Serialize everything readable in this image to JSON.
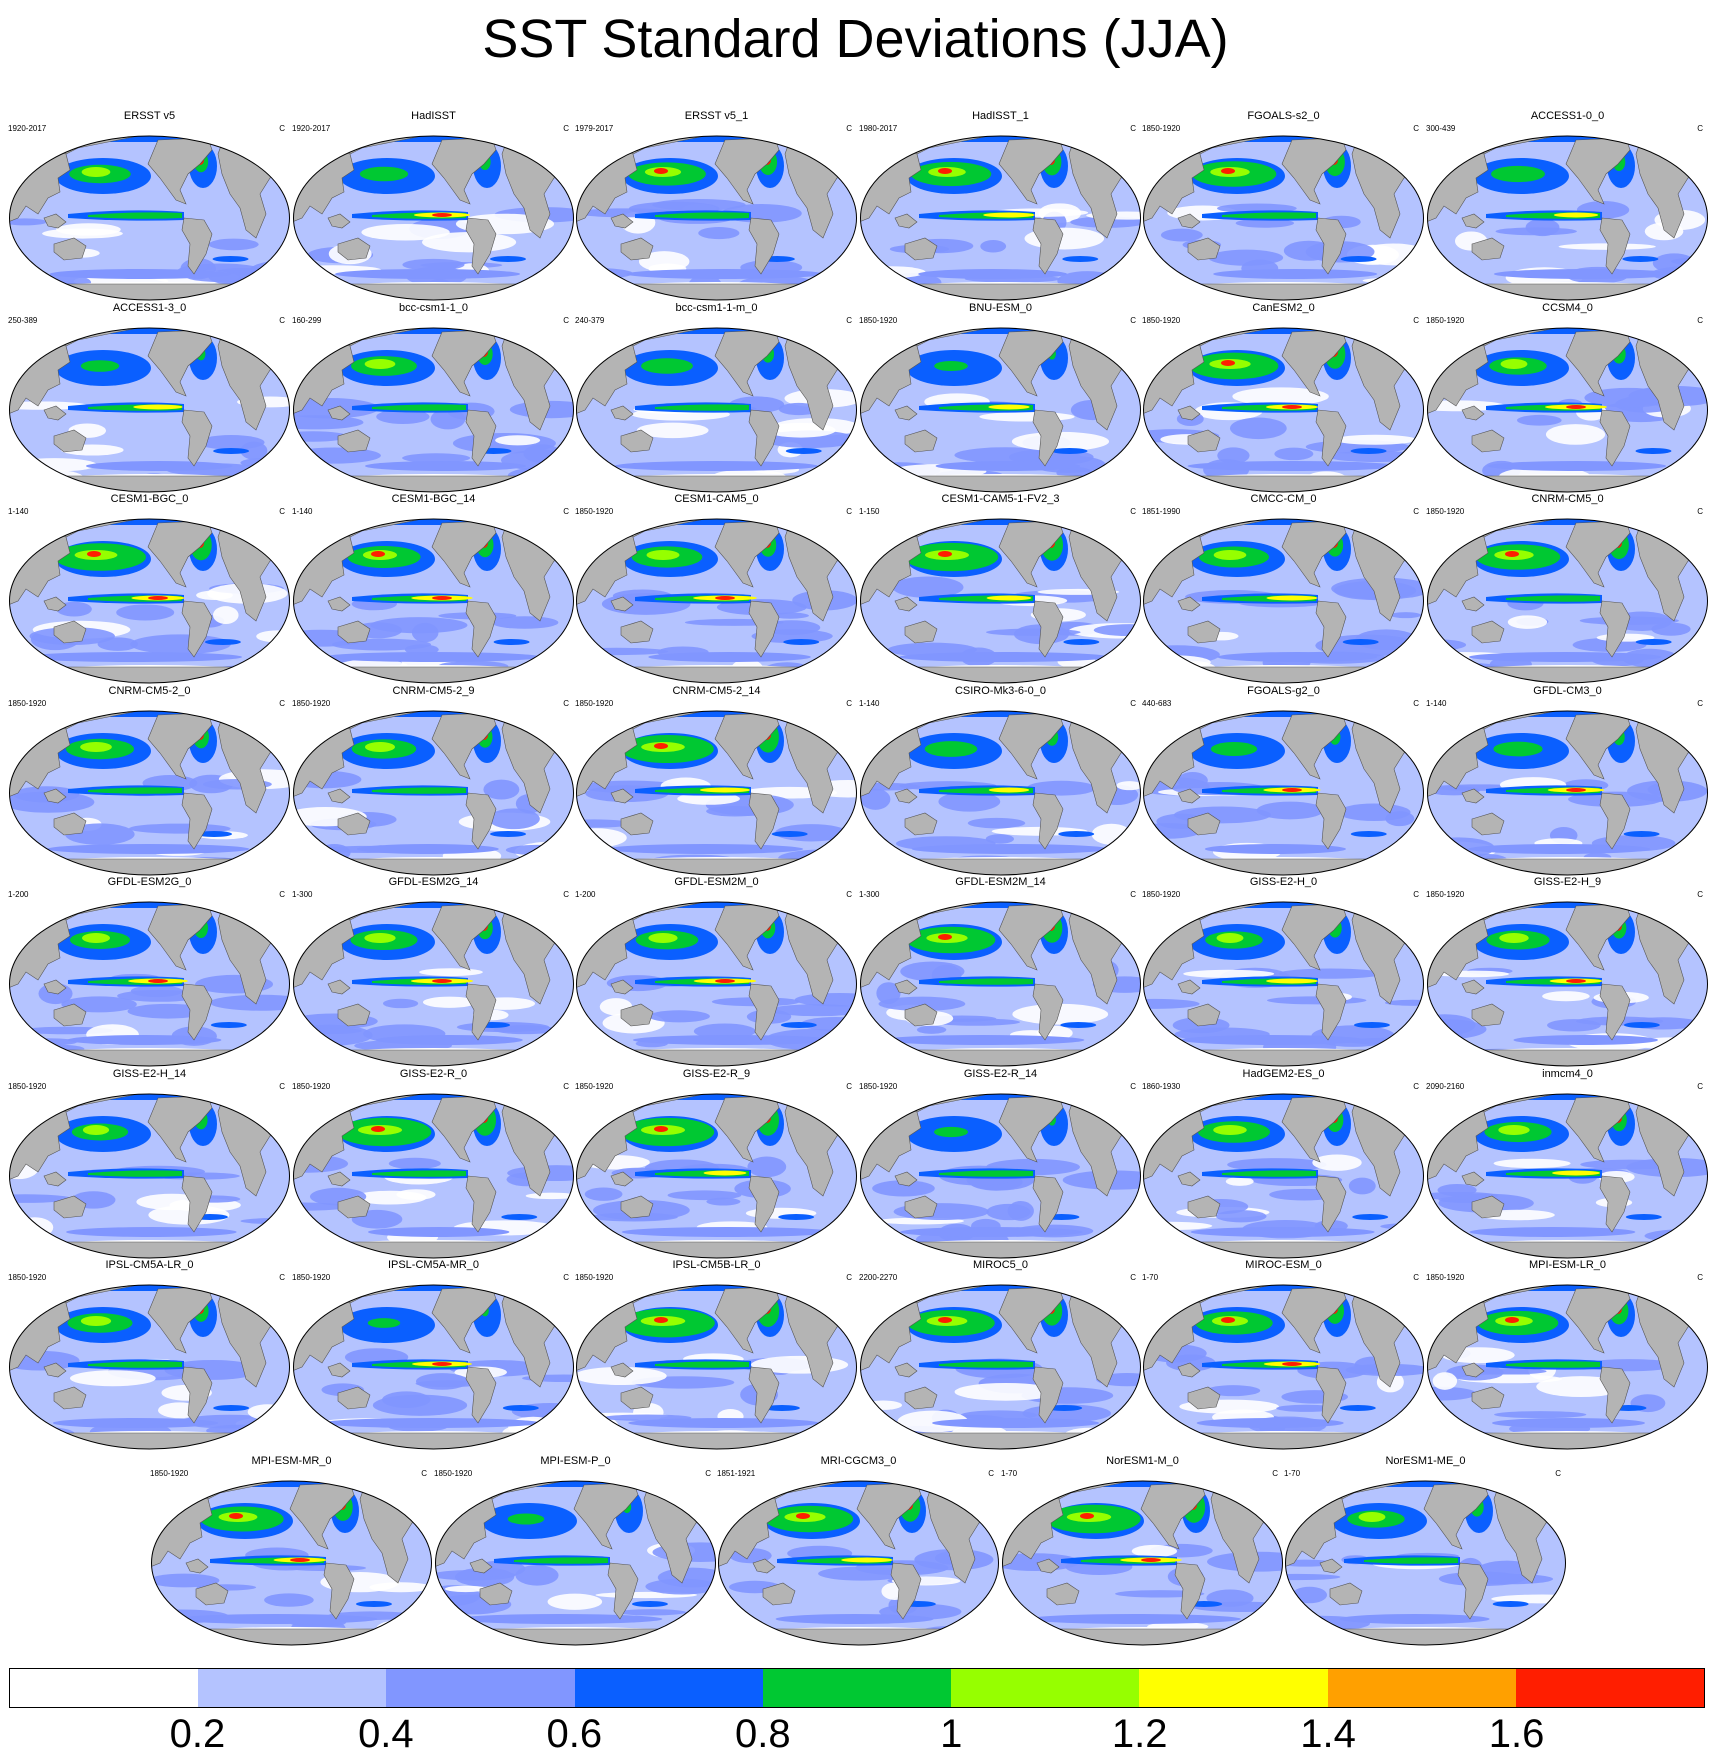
{
  "title": "SST Standard Deviations (JJA)",
  "chart_data": {
    "type": "heatmap",
    "title": "SST Standard Deviations (JJA)",
    "projection": "global map panels, Pacific-centered",
    "panel_unit": "C",
    "panels": [
      {
        "name": "ERSST v5",
        "period": "1920-2017"
      },
      {
        "name": "HadISST",
        "period": "1920-2017"
      },
      {
        "name": "ERSST v5_1",
        "period": "1979-2017"
      },
      {
        "name": "HadISST_1",
        "period": "1980-2017"
      },
      {
        "name": "FGOALS-s2_0",
        "period": "1850-1920"
      },
      {
        "name": "ACCESS1-0_0",
        "period": "300-439"
      },
      {
        "name": "ACCESS1-3_0",
        "period": "250-389"
      },
      {
        "name": "bcc-csm1-1_0",
        "period": "160-299"
      },
      {
        "name": "bcc-csm1-1-m_0",
        "period": "240-379"
      },
      {
        "name": "BNU-ESM_0",
        "period": "1850-1920"
      },
      {
        "name": "CanESM2_0",
        "period": "1850-1920"
      },
      {
        "name": "CCSM4_0",
        "period": "1850-1920"
      },
      {
        "name": "CESM1-BGC_0",
        "period": "1-140"
      },
      {
        "name": "CESM1-BGC_14",
        "period": "1-140"
      },
      {
        "name": "CESM1-CAM5_0",
        "period": "1850-1920"
      },
      {
        "name": "CESM1-CAM5-1-FV2_3",
        "period": "1-150"
      },
      {
        "name": "CMCC-CM_0",
        "period": "1851-1990"
      },
      {
        "name": "CNRM-CM5_0",
        "period": "1850-1920"
      },
      {
        "name": "CNRM-CM5-2_0",
        "period": "1850-1920"
      },
      {
        "name": "CNRM-CM5-2_9",
        "period": "1850-1920"
      },
      {
        "name": "CNRM-CM5-2_14",
        "period": "1850-1920"
      },
      {
        "name": "CSIRO-Mk3-6-0_0",
        "period": "1-140"
      },
      {
        "name": "FGOALS-g2_0",
        "period": "440-683"
      },
      {
        "name": "GFDL-CM3_0",
        "period": "1-140"
      },
      {
        "name": "GFDL-ESM2G_0",
        "period": "1-200"
      },
      {
        "name": "GFDL-ESM2G_14",
        "period": "1-300"
      },
      {
        "name": "GFDL-ESM2M_0",
        "period": "1-200"
      },
      {
        "name": "GFDL-ESM2M_14",
        "period": "1-300"
      },
      {
        "name": "GISS-E2-H_0",
        "period": "1850-1920"
      },
      {
        "name": "GISS-E2-H_9",
        "period": "1850-1920"
      },
      {
        "name": "GISS-E2-H_14",
        "period": "1850-1920"
      },
      {
        "name": "GISS-E2-R_0",
        "period": "1850-1920"
      },
      {
        "name": "GISS-E2-R_9",
        "period": "1850-1920"
      },
      {
        "name": "GISS-E2-R_14",
        "period": "1850-1920"
      },
      {
        "name": "HadGEM2-ES_0",
        "period": "1860-1930"
      },
      {
        "name": "inmcm4_0",
        "period": "2090-2160"
      },
      {
        "name": "IPSL-CM5A-LR_0",
        "period": "1850-1920"
      },
      {
        "name": "IPSL-CM5A-MR_0",
        "period": "1850-1920"
      },
      {
        "name": "IPSL-CM5B-LR_0",
        "period": "1850-1920"
      },
      {
        "name": "MIROC5_0",
        "period": "2200-2270"
      },
      {
        "name": "MIROC-ESM_0",
        "period": "1-70"
      },
      {
        "name": "MPI-ESM-LR_0",
        "period": "1850-1920"
      },
      {
        "name": "MPI-ESM-MR_0",
        "period": "1850-1920"
      },
      {
        "name": "MPI-ESM-P_0",
        "period": "1850-1920"
      },
      {
        "name": "MRI-CGCM3_0",
        "period": "1851-1921"
      },
      {
        "name": "NorESM1-M_0",
        "period": "1-70"
      },
      {
        "name": "NorESM1-ME_0",
        "period": "1-70"
      }
    ],
    "colorbar": {
      "ticks": [
        "0.2",
        "0.4",
        "0.6",
        "0.8",
        "1",
        "1.2",
        "1.4",
        "1.6"
      ],
      "colors": [
        "#ffffff",
        "#b4c3ff",
        "#8196ff",
        "#0a5fff",
        "#00c832",
        "#96ff00",
        "#ffff00",
        "#ffa000",
        "#ff1e00"
      ]
    },
    "land_color": "#b4b4b4"
  }
}
